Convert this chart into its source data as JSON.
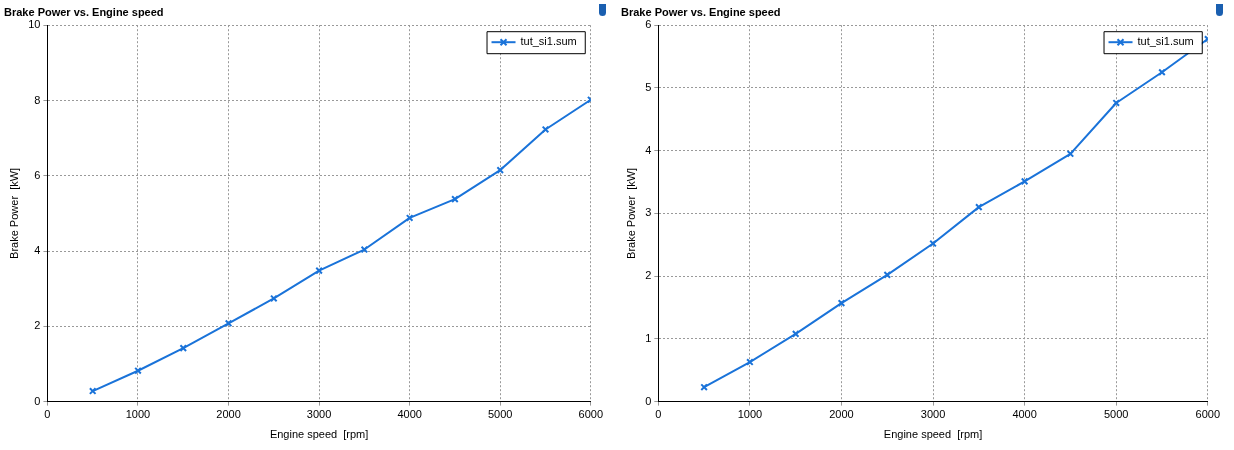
{
  "chart_data": [
    {
      "type": "line",
      "title": "Brake Power vs. Engine speed",
      "xlabel": "Engine speed  [rpm]",
      "ylabel": "Brake Power  [kW]",
      "x": [
        500,
        1000,
        1500,
        2000,
        2500,
        3000,
        3500,
        4000,
        4500,
        5000,
        5500,
        6000
      ],
      "series": [
        {
          "name": "tut_si1.sum",
          "color": "#1a73d9",
          "values": [
            0.28,
            0.82,
            1.42,
            2.08,
            2.74,
            3.48,
            4.04,
            4.88,
            5.38,
            6.15,
            7.23,
            8.02
          ]
        }
      ],
      "xlim": [
        0,
        6000
      ],
      "xticks": [
        0,
        1000,
        2000,
        3000,
        4000,
        5000,
        6000
      ],
      "ylim": [
        0,
        10
      ],
      "yticks": [
        0,
        2,
        4,
        6,
        8,
        10
      ],
      "grid": true,
      "legend": "top right",
      "marker": "cross",
      "line_style": "solid"
    },
    {
      "type": "line",
      "title": "Brake Power vs. Engine speed",
      "xlabel": "Engine speed  [rpm]",
      "ylabel": "Brake Power  [kW]",
      "x": [
        500,
        1000,
        1500,
        2000,
        2500,
        3000,
        3500,
        4000,
        4500,
        5000,
        5500,
        6000
      ],
      "series": [
        {
          "name": "tut_si1.sum",
          "color": "#1a73d9",
          "values": [
            0.23,
            0.63,
            1.08,
            1.57,
            2.02,
            2.52,
            3.1,
            3.51,
            3.95,
            4.76,
            5.25,
            5.78
          ]
        }
      ],
      "xlim": [
        0,
        6000
      ],
      "xticks": [
        0,
        1000,
        2000,
        3000,
        4000,
        5000,
        6000
      ],
      "ylim": [
        0,
        6
      ],
      "yticks": [
        0,
        1,
        2,
        3,
        4,
        5,
        6
      ],
      "grid": true,
      "legend": "top right",
      "marker": "cross",
      "line_style": "solid"
    }
  ]
}
